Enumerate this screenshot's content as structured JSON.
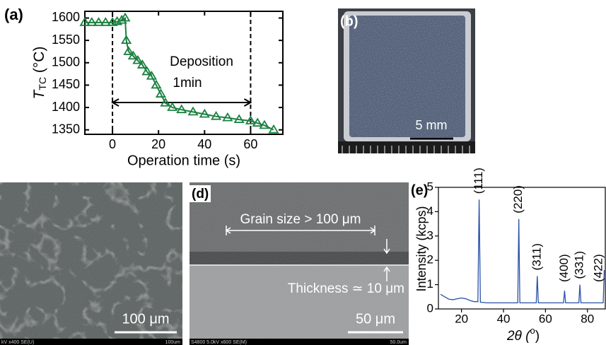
{
  "chart_data": [
    {
      "type": "line",
      "panel_label": "(a)",
      "xlabel": "Operation time (s)",
      "ylabel": {
        "main": "T",
        "sub": "TC",
        "rest": " (°C)"
      },
      "annotations": [
        "Deposition",
        "1min"
      ],
      "xlim": [
        -12,
        74
      ],
      "ylim": [
        1340,
        1615
      ],
      "xticks": [
        0,
        20,
        40,
        60
      ],
      "yticks": [
        1350,
        1400,
        1450,
        1500,
        1550,
        1600
      ],
      "vlines": [
        0,
        60
      ],
      "x": [
        -12,
        -9,
        -6,
        -3,
        0,
        2,
        4,
        5.5,
        6,
        7,
        9,
        11,
        13,
        15,
        17,
        19,
        21,
        23,
        26,
        30,
        35,
        40,
        45,
        50,
        55,
        60,
        63,
        66,
        70
      ],
      "series": [
        {
          "color": "#1a8040",
          "values": [
            1590,
            1590,
            1590,
            1590,
            1590,
            1592,
            1595,
            1600,
            1550,
            1525,
            1515,
            1505,
            1495,
            1480,
            1470,
            1450,
            1430,
            1410,
            1400,
            1395,
            1390,
            1385,
            1380,
            1377,
            1373,
            1370,
            1365,
            1360,
            1350
          ]
        }
      ]
    },
    {
      "type": "line",
      "panel_label": "(e)",
      "xlabel": {
        "main": "2θ (",
        "sup": "o",
        "rest": ")"
      },
      "ylabel": "Intensity (kcps)",
      "xlim": [
        9,
        88.5
      ],
      "ylim": [
        0,
        5
      ],
      "xticks": [
        20,
        40,
        60,
        80
      ],
      "yticks": [
        0,
        1,
        2,
        3,
        4,
        5
      ],
      "x": [
        10,
        12,
        14,
        16,
        18,
        20,
        22,
        24,
        26,
        27.8,
        28.4,
        29,
        32,
        36,
        40,
        44,
        46.8,
        47.3,
        47.8,
        50,
        54,
        55.6,
        56.1,
        56.6,
        60,
        64,
        68.6,
        69.1,
        69.6,
        72,
        75.9,
        76.4,
        76.9,
        80,
        84,
        87.5,
        88
      ],
      "series": [
        {
          "color": "#2a52a8",
          "values": [
            0.6,
            0.5,
            0.4,
            0.38,
            0.42,
            0.45,
            0.42,
            0.35,
            0.3,
            0.3,
            4.5,
            0.28,
            0.25,
            0.25,
            0.25,
            0.25,
            0.25,
            3.7,
            0.25,
            0.25,
            0.25,
            0.25,
            1.35,
            0.25,
            0.25,
            0.25,
            0.25,
            0.75,
            0.25,
            0.25,
            0.25,
            1.0,
            0.25,
            0.25,
            0.25,
            0.25,
            1.6
          ]
        }
      ],
      "peak_annotations": [
        {
          "text": "(111)",
          "x": 28.4
        },
        {
          "text": "(220)",
          "x": 47.3
        },
        {
          "text": "(311)",
          "x": 56.1
        },
        {
          "text": "(400)",
          "x": 69.1
        },
        {
          "text": "(331)",
          "x": 76.4
        },
        {
          "text": "(422)",
          "x": 87.5
        }
      ]
    }
  ],
  "images": {
    "b": {
      "label": "(b)",
      "scale_bar": "5 mm"
    },
    "c": {
      "scale_bar": "100 μm",
      "footer_left": "kV x400 SE(U)",
      "footer_right": "100um"
    },
    "d": {
      "label": "(d)",
      "scale_bar": "50 μm",
      "grain": "Grain size > 100 μm",
      "thickness": "Thickness ≃ 10 μm",
      "footer_left": "S4800 5.0kV x600 SE(M)",
      "footer_right": "50.0um"
    }
  }
}
